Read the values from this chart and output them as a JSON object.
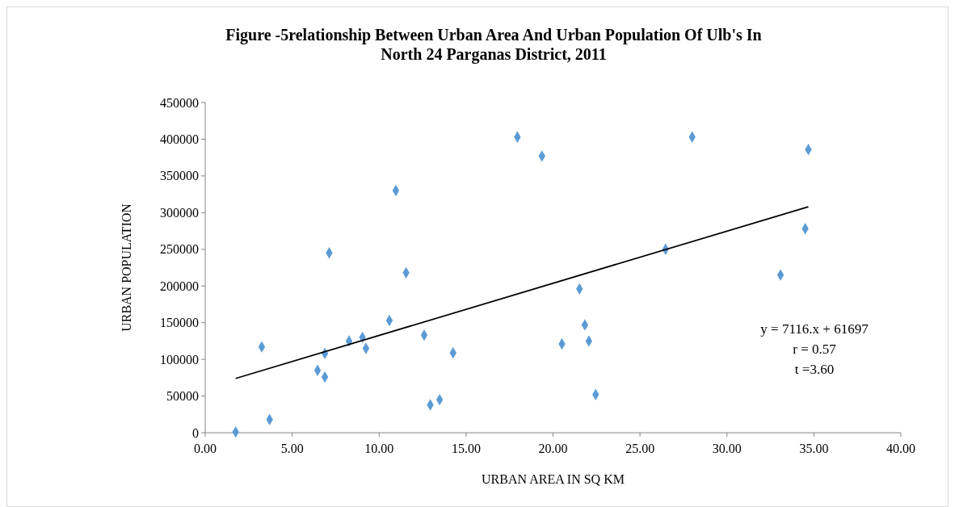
{
  "chart_data": {
    "type": "scatter",
    "title": "Figure -5relationship Between Urban Area And Urban Population Of Ulb's In North 24 Parganas District, 2011",
    "xlabel": "URBAN AREA IN SQ KM",
    "ylabel": "URBAN POPULATION",
    "xlim": [
      0,
      40
    ],
    "xticks": [
      {
        "value": 0,
        "label": "0.00"
      },
      {
        "value": 5,
        "label": "5.00"
      },
      {
        "value": 10,
        "label": "10.00"
      },
      {
        "value": 15,
        "label": "15.00"
      },
      {
        "value": 20,
        "label": "20.00"
      },
      {
        "value": 25,
        "label": "25.00"
      },
      {
        "value": 30,
        "label": "30.00"
      },
      {
        "value": 35,
        "label": "35.00"
      },
      {
        "value": 40,
        "label": "40.00"
      }
    ],
    "ylim": [
      0,
      450000
    ],
    "yticks": [
      0,
      50000,
      100000,
      150000,
      200000,
      250000,
      300000,
      350000,
      400000,
      450000
    ],
    "grid": false,
    "marker": "diamond",
    "annotations": [
      "y = 7116.x + 61697",
      "r = 0.57",
      "t =3.60"
    ],
    "series": [
      {
        "color": "#5b9bd5",
        "x": [
          1.75,
          3.25,
          3.7,
          6.46,
          6.88,
          6.88,
          7.13,
          8.27,
          9.04,
          9.24,
          10.59,
          10.96,
          11.55,
          12.59,
          12.94,
          13.48,
          14.25,
          17.95,
          19.36,
          20.51,
          21.52,
          21.83,
          22.06,
          22.45,
          26.47,
          28.0,
          33.08,
          34.5,
          34.68
        ],
        "values": [
          1000,
          117000,
          18000,
          85000,
          108000,
          76000,
          245000,
          125000,
          130000,
          115000,
          153000,
          330000,
          218000,
          133000,
          38000,
          45000,
          109000,
          403000,
          377000,
          121000,
          196000,
          147000,
          125000,
          52000,
          250000,
          403000,
          215000,
          278000,
          386000
        ]
      },
      {
        "type": "line",
        "color": "#000000",
        "marker": "none",
        "x": [
          1.75,
          34.68
        ],
        "values": [
          74000,
          308000
        ]
      }
    ]
  }
}
